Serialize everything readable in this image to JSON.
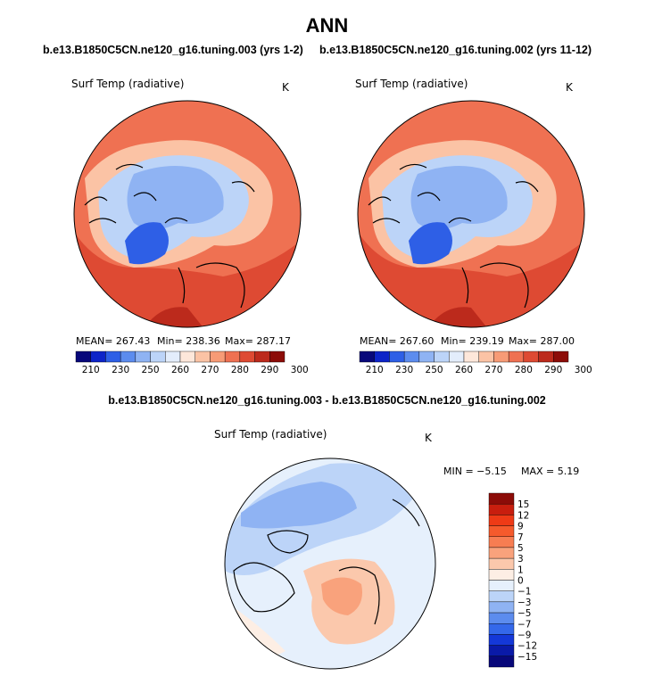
{
  "chart_data": [
    {
      "type": "heatmap",
      "title": "b.e13.B1850C5CN.ne120_g16.tuning.003 (yrs 1-2)",
      "variable": "Surf Temp (radiative)",
      "units": "K",
      "projection": "polar stereographic, north pole",
      "stats": {
        "mean_text": "MEAN= 267.43",
        "min_text": "Min= 238.36",
        "max_text": "Max= 287.17",
        "mean": 267.43,
        "min": 238.36,
        "max": 287.17
      },
      "colorbar": {
        "orientation": "horizontal",
        "levels": [
          "210",
          "230",
          "250",
          "260",
          "270",
          "280",
          "290",
          "300"
        ],
        "colors": [
          "#08087a",
          "#0d24c8",
          "#2e5fe6",
          "#5c8cee",
          "#8fb3f3",
          "#bcd4f8",
          "#e3edfb",
          "#fde7da",
          "#fbc3a5",
          "#f79b76",
          "#ef7152",
          "#de4a33",
          "#bc2a1c",
          "#8c0c08"
        ]
      }
    },
    {
      "type": "heatmap",
      "title": "b.e13.B1850C5CN.ne120_g16.tuning.002 (yrs 11-12)",
      "variable": "Surf Temp (radiative)",
      "units": "K",
      "projection": "polar stereographic, north pole",
      "stats": {
        "mean_text": "MEAN= 267.60",
        "min_text": "Min= 239.19",
        "max_text": "Max= 287.00",
        "mean": 267.6,
        "min": 239.19,
        "max": 287.0
      },
      "colorbar": {
        "orientation": "horizontal",
        "levels": [
          "210",
          "230",
          "250",
          "260",
          "270",
          "280",
          "290",
          "300"
        ],
        "colors": [
          "#08087a",
          "#0d24c8",
          "#2e5fe6",
          "#5c8cee",
          "#8fb3f3",
          "#bcd4f8",
          "#e3edfb",
          "#fde7da",
          "#fbc3a5",
          "#f79b76",
          "#ef7152",
          "#de4a33",
          "#bc2a1c",
          "#8c0c08"
        ]
      }
    },
    {
      "type": "heatmap",
      "title": "b.e13.B1850C5CN.ne120_g16.tuning.003 - b.e13.B1850C5CN.ne120_g16.tuning.002",
      "variable": "Surf Temp (radiative)",
      "units": "K",
      "projection": "polar stereographic, north pole",
      "stats": {
        "min_text": "MIN =  −5.15",
        "max_text": "MAX =   5.19",
        "min": -5.15,
        "max": 5.19
      },
      "colorbar": {
        "orientation": "vertical",
        "levels": [
          "15",
          "12",
          "9",
          "7",
          "5",
          "3",
          "1",
          "0",
          "−1",
          "−3",
          "−5",
          "−7",
          "−9",
          "−12",
          "−15"
        ],
        "colors": [
          "#8c0c08",
          "#c81e0e",
          "#ee3a16",
          "#f55a2c",
          "#f77d52",
          "#f9a27c",
          "#fbc8ac",
          "#fdeee4",
          "#e6f0fc",
          "#bcd4f8",
          "#8fb3f3",
          "#5c8cee",
          "#3468ea",
          "#1438d8",
          "#0a1aa8",
          "#08087a"
        ]
      }
    }
  ],
  "page": {
    "main_title": "ANN",
    "left_title": "b.e13.B1850C5CN.ne120_g16.tuning.003 (yrs 1-2)",
    "right_title": "b.e13.B1850C5CN.ne120_g16.tuning.002 (yrs 11-12)",
    "diff_title": "b.e13.B1850C5CN.ne120_g16.tuning.003 - b.e13.B1850C5CN.ne120_g16.tuning.002",
    "var_label": "Surf Temp (radiative)",
    "unit_label": "K"
  }
}
